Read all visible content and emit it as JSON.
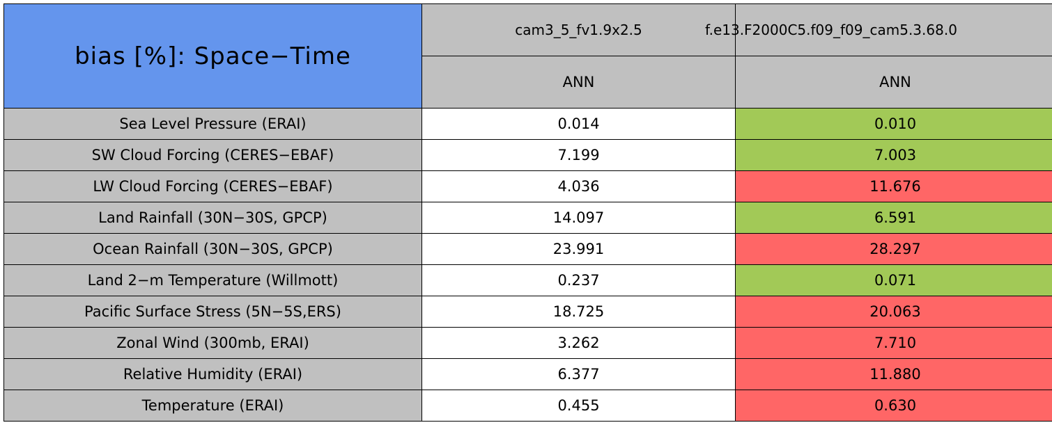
{
  "table": {
    "title": "bias [%]: Space−Time",
    "runs": [
      "cam3_5_fv1.9x2.5",
      "f.e13.F2000C5.f09_f09_cam5.3.68.0"
    ],
    "seasons": [
      "ANN",
      "ANN"
    ],
    "rows": [
      {
        "label": "Sea Level Pressure (ERAI)",
        "values": [
          "0.014",
          "0.010"
        ],
        "colors": [
          "#ffffff",
          "#a2c957"
        ]
      },
      {
        "label": "SW Cloud Forcing (CERES−EBAF)",
        "values": [
          "7.199",
          "7.003"
        ],
        "colors": [
          "#ffffff",
          "#a2c957"
        ]
      },
      {
        "label": "LW Cloud Forcing (CERES−EBAF)",
        "values": [
          "4.036",
          "11.676"
        ],
        "colors": [
          "#ffffff",
          "#ff6666"
        ]
      },
      {
        "label": "Land Rainfall (30N−30S, GPCP)",
        "values": [
          "14.097",
          "6.591"
        ],
        "colors": [
          "#ffffff",
          "#a2c957"
        ]
      },
      {
        "label": "Ocean Rainfall (30N−30S, GPCP)",
        "values": [
          "23.991",
          "28.297"
        ],
        "colors": [
          "#ffffff",
          "#ff6666"
        ]
      },
      {
        "label": "Land 2−m Temperature (Willmott)",
        "values": [
          "0.237",
          "0.071"
        ],
        "colors": [
          "#ffffff",
          "#a2c957"
        ]
      },
      {
        "label": "Pacific Surface Stress (5N−5S,ERS)",
        "values": [
          "18.725",
          "20.063"
        ],
        "colors": [
          "#ffffff",
          "#ff6666"
        ]
      },
      {
        "label": "Zonal Wind (300mb, ERAI)",
        "values": [
          "3.262",
          "7.710"
        ],
        "colors": [
          "#ffffff",
          "#ff6666"
        ]
      },
      {
        "label": "Relative Humidity (ERAI)",
        "values": [
          "6.377",
          "11.880"
        ],
        "colors": [
          "#ffffff",
          "#ff6666"
        ]
      },
      {
        "label": "Temperature (ERAI)",
        "values": [
          "0.455",
          "0.630"
        ],
        "colors": [
          "#ffffff",
          "#ff6666"
        ]
      }
    ]
  }
}
